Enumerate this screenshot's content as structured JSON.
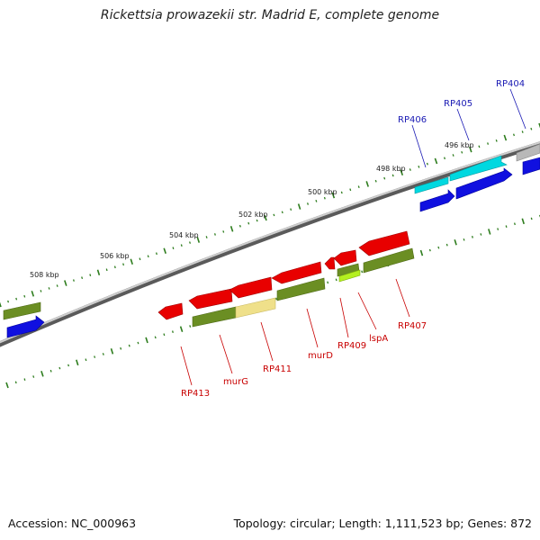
{
  "title": "Rickettsia prowazekii str. Madrid E, complete genome",
  "footer": {
    "accession": "Accession: NC_000963",
    "topology": "Topology: circular; Length: 1,111,523 bp; Genes: 872"
  },
  "colors": {
    "backbone": "#8a8a8a",
    "ticks": "#2e7d1e",
    "forward_label": "#1a1ab4",
    "reverse_label": "#c80000",
    "red": "#e80000",
    "blue": "#1010e0",
    "cyan": "#00d8e0",
    "olive": "#6b8e23",
    "gray": "#b8b8b8",
    "khaki": "#efe08a",
    "lime": "#b4f020"
  },
  "tick_labels": [
    "508 kbp",
    "506 kbp",
    "504 kbp",
    "502 kbp",
    "500 kbp",
    "498 kbp",
    "496 kbp"
  ],
  "gene_labels": {
    "forward": [
      "RP406",
      "RP405",
      "RP404"
    ],
    "reverse": [
      "RP413",
      "murG",
      "RP411",
      "murD",
      "RP409",
      "lspA",
      "RP407"
    ]
  }
}
